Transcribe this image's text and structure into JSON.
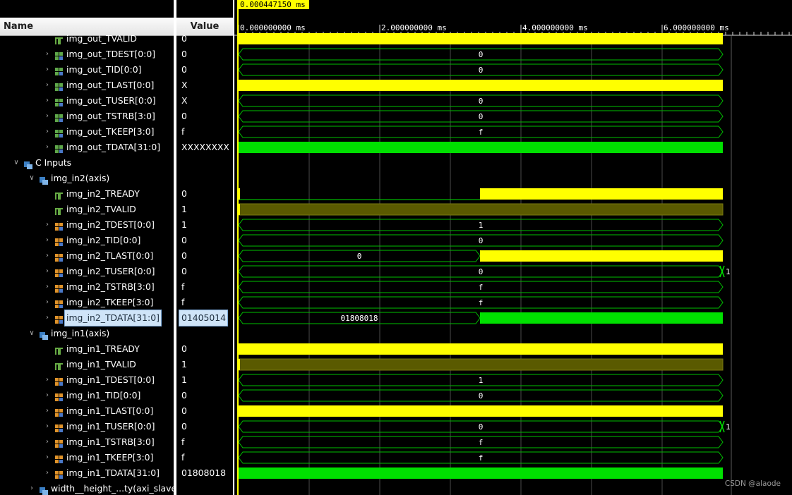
{
  "cursor_time": "0.000447150 ms",
  "columns": {
    "name": "Name",
    "value": "Value"
  },
  "time_ticks": [
    "0.000000000 ms",
    "2.000000000 ms",
    "4.000000000 ms",
    "6.000000000 ms"
  ],
  "watermark": "CSDN @alaode",
  "colors": {
    "yellow": "#ffff00",
    "green": "#00e000",
    "vector_outline": "#00c000",
    "text": "#ffffff",
    "selected_bg": "#cfe4f8"
  },
  "signals": [
    {
      "label": "img_out_TVALID",
      "value": "0",
      "indent": 1,
      "type": "bit",
      "wave": "high"
    },
    {
      "label": "img_out_TDEST[0:0]",
      "value": "0",
      "indent": 1,
      "type": "vec",
      "wave": "bus",
      "segments": [
        {
          "text": "0"
        }
      ]
    },
    {
      "label": "img_out_TID[0:0]",
      "value": "0",
      "indent": 1,
      "type": "vec",
      "wave": "bus",
      "segments": [
        {
          "text": "0"
        }
      ]
    },
    {
      "label": "img_out_TLAST[0:0]",
      "value": "X",
      "indent": 1,
      "type": "vec",
      "wave": "xbar"
    },
    {
      "label": "img_out_TUSER[0:0]",
      "value": "X",
      "indent": 1,
      "type": "vec",
      "wave": "bus",
      "segments": [
        {
          "text": "0"
        }
      ]
    },
    {
      "label": "img_out_TSTRB[3:0]",
      "value": "0",
      "indent": 1,
      "type": "vec",
      "wave": "bus",
      "segments": [
        {
          "text": "0"
        }
      ]
    },
    {
      "label": "img_out_TKEEP[3:0]",
      "value": "f",
      "indent": 1,
      "type": "vec",
      "wave": "bus",
      "segments": [
        {
          "text": "f"
        }
      ]
    },
    {
      "label": "img_out_TDATA[31:0]",
      "value": "XXXXXXXX",
      "indent": 1,
      "type": "vec",
      "wave": "greenbar"
    },
    {
      "label": "C Inputs",
      "value": "",
      "indent": -1,
      "type": "group",
      "wave": "none"
    },
    {
      "label": "img_in2(axis)",
      "value": "",
      "indent": 0,
      "type": "group",
      "wave": "none"
    },
    {
      "label": "img_in2_TREADY",
      "value": "0",
      "indent": 1,
      "type": "bit",
      "wave": "low_high"
    },
    {
      "label": "img_in2_TVALID",
      "value": "1",
      "indent": 1,
      "type": "bit",
      "wave": "shaded"
    },
    {
      "label": "img_in2_TDEST[0:0]",
      "value": "1",
      "indent": 1,
      "type": "vec",
      "wave": "bus",
      "segments": [
        {
          "text": "1"
        }
      ]
    },
    {
      "label": "img_in2_TID[0:0]",
      "value": "0",
      "indent": 1,
      "type": "vec",
      "wave": "bus",
      "segments": [
        {
          "text": "0"
        }
      ]
    },
    {
      "label": "img_in2_TLAST[0:0]",
      "value": "0",
      "indent": 1,
      "type": "vec",
      "wave": "bus_then_yellow",
      "segments": [
        {
          "text": "0"
        }
      ]
    },
    {
      "label": "img_in2_TUSER[0:0]",
      "value": "0",
      "indent": 1,
      "type": "vec",
      "wave": "bus_end_change",
      "segments": [
        {
          "text": "0"
        },
        {
          "text": "1"
        }
      ]
    },
    {
      "label": "img_in2_TSTRB[3:0]",
      "value": "f",
      "indent": 1,
      "type": "vec",
      "wave": "bus",
      "segments": [
        {
          "text": "f"
        }
      ]
    },
    {
      "label": "img_in2_TKEEP[3:0]",
      "value": "f",
      "indent": 1,
      "type": "vec",
      "wave": "bus",
      "segments": [
        {
          "text": "f"
        }
      ]
    },
    {
      "label": "img_in2_TDATA[31:0]",
      "value": "01405014",
      "indent": 1,
      "type": "vec",
      "wave": "bus_then_green",
      "selected": true,
      "segments": [
        {
          "text": "01808018"
        }
      ]
    },
    {
      "label": "img_in1(axis)",
      "value": "",
      "indent": 0,
      "type": "group",
      "wave": "none"
    },
    {
      "label": "img_in1_TREADY",
      "value": "0",
      "indent": 1,
      "type": "bit",
      "wave": "xbar"
    },
    {
      "label": "img_in1_TVALID",
      "value": "1",
      "indent": 1,
      "type": "bit",
      "wave": "shaded"
    },
    {
      "label": "img_in1_TDEST[0:0]",
      "value": "1",
      "indent": 1,
      "type": "vec",
      "wave": "bus",
      "segments": [
        {
          "text": "1"
        }
      ]
    },
    {
      "label": "img_in1_TID[0:0]",
      "value": "0",
      "indent": 1,
      "type": "vec",
      "wave": "bus",
      "segments": [
        {
          "text": "0"
        }
      ]
    },
    {
      "label": "img_in1_TLAST[0:0]",
      "value": "0",
      "indent": 1,
      "type": "vec",
      "wave": "xbar"
    },
    {
      "label": "img_in1_TUSER[0:0]",
      "value": "0",
      "indent": 1,
      "type": "vec",
      "wave": "bus_end_change",
      "segments": [
        {
          "text": "0"
        },
        {
          "text": "1"
        }
      ]
    },
    {
      "label": "img_in1_TSTRB[3:0]",
      "value": "f",
      "indent": 1,
      "type": "vec",
      "wave": "bus",
      "segments": [
        {
          "text": "f"
        }
      ]
    },
    {
      "label": "img_in1_TKEEP[3:0]",
      "value": "f",
      "indent": 1,
      "type": "vec",
      "wave": "bus",
      "segments": [
        {
          "text": "f"
        }
      ]
    },
    {
      "label": "img_in1_TDATA[31:0]",
      "value": "01808018",
      "indent": 1,
      "type": "vec",
      "wave": "greenbar"
    },
    {
      "label": "width__height_...ty(axi_slave",
      "value": "",
      "indent": 0,
      "type": "group",
      "wave": "none"
    }
  ]
}
